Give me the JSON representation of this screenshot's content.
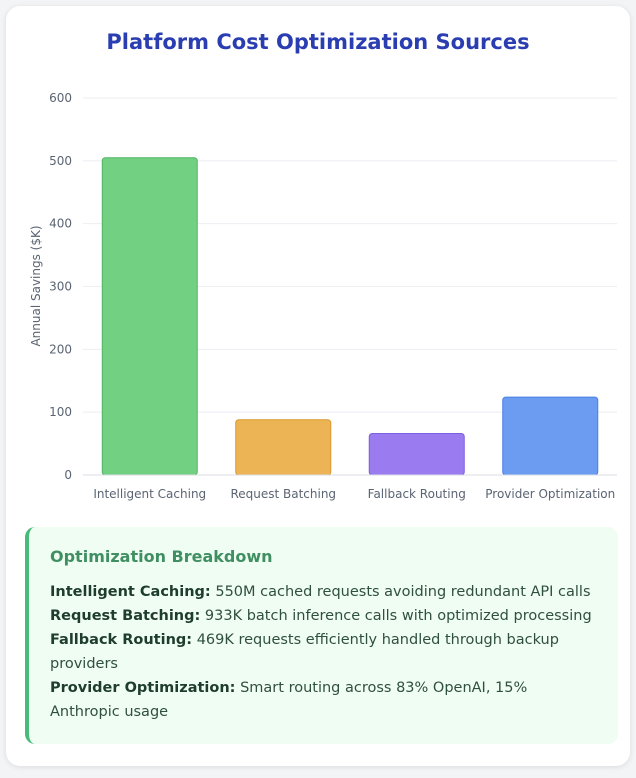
{
  "chart_data": {
    "type": "bar",
    "title": "Platform Cost Optimization Sources",
    "xlabel": "",
    "ylabel": "Annual Savings ($K)",
    "ylim": [
      0,
      600
    ],
    "yticks": [
      0,
      100,
      200,
      300,
      400,
      500,
      600
    ],
    "grid": true,
    "legend": "none",
    "categories": [
      "Intelligent Caching",
      "Request Batching",
      "Fallback Routing",
      "Provider Optimization"
    ],
    "values": [
      505,
      88,
      66,
      124
    ],
    "colors": [
      "#72d082",
      "#ecb454",
      "#9b7cf0",
      "#6b9cf2"
    ],
    "border_colors": [
      "#52b463",
      "#d8992e",
      "#7c5ee0",
      "#4a7fe6"
    ]
  },
  "breakdown": {
    "title": "Optimization Breakdown",
    "items": [
      {
        "label": "Intelligent Caching:",
        "text": "550M cached requests avoiding redundant API calls"
      },
      {
        "label": "Request Batching:",
        "text": "933K batch inference calls with optimized processing"
      },
      {
        "label": "Fallback Routing:",
        "text": "469K requests efficiently handled through backup providers"
      },
      {
        "label": "Provider Optimization:",
        "text": "Smart routing across 83% OpenAI, 15% Anthropic usage"
      }
    ]
  }
}
